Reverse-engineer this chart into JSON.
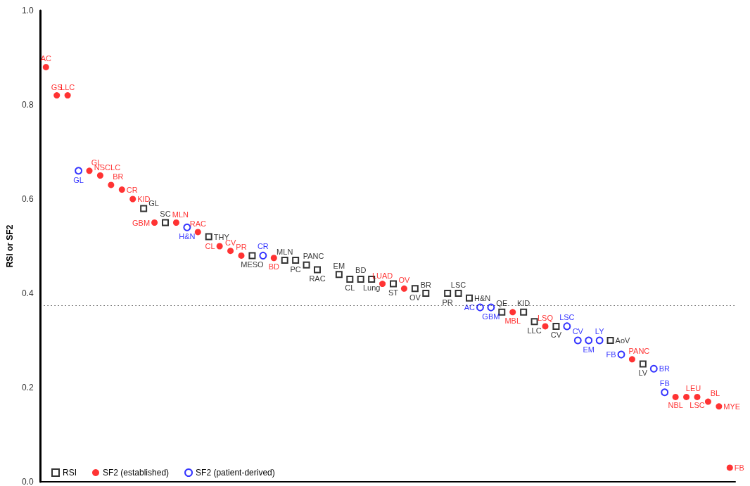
{
  "chart_data": {
    "type": "scatter",
    "ylabel": "RSI or SF2",
    "categories": [
      null,
      null,
      null,
      null,
      null,
      null,
      null,
      null,
      null,
      null,
      null,
      null,
      null,
      null,
      null,
      null,
      null,
      null,
      null,
      null,
      null,
      null,
      null,
      null,
      null,
      null,
      null,
      null,
      null,
      null,
      null,
      null,
      null,
      null,
      null,
      null,
      null,
      null,
      null,
      null,
      null,
      null,
      null,
      null,
      null,
      null,
      null,
      null,
      null,
      null,
      null,
      null,
      null,
      null,
      null,
      null,
      null,
      null,
      null,
      null,
      null,
      null,
      null,
      null
    ],
    "series": [
      {
        "name": "RSI",
        "color": "#000000",
        "marker": "square",
        "values": [
          null,
          null,
          null,
          null,
          null,
          null,
          null,
          null,
          null,
          0.58,
          null,
          0.55,
          null,
          null,
          null,
          0.52,
          null,
          null,
          null,
          0.48,
          null,
          null,
          0.47,
          0.47,
          0.46,
          0.45,
          null,
          0.44,
          0.43,
          0.43,
          0.43,
          null,
          0.42,
          null,
          0.41,
          0.4,
          null,
          0.4,
          0.4,
          0.39,
          null,
          null,
          0.36,
          null,
          0.36,
          0.34,
          null,
          0.33,
          null,
          null,
          null,
          null,
          0.3,
          null,
          null,
          0.25,
          null,
          null,
          null,
          null,
          null,
          null,
          null,
          null
        ],
        "value_labels": [
          null,
          null,
          null,
          null,
          null,
          null,
          null,
          null,
          null,
          "GL",
          null,
          "SC",
          null,
          null,
          null,
          "THY",
          null,
          null,
          null,
          "MESO",
          null,
          null,
          "MLN",
          "PC",
          "PANC",
          "RAC",
          null,
          "EM",
          "CL",
          "BD",
          "Lung",
          null,
          "ST",
          null,
          "OV",
          "BR",
          null,
          "PR",
          "LSC",
          "H&N",
          null,
          null,
          "QE",
          null,
          "KID",
          "LLC",
          null,
          "CV",
          null,
          null,
          null,
          null,
          "AoV",
          null,
          null,
          "LV",
          null,
          null,
          null,
          null,
          null,
          null,
          null,
          null
        ]
      },
      {
        "name": "SF2 (established)",
        "color": "#ff0000",
        "marker": "circle",
        "values": [
          0.88,
          0.82,
          0.82,
          null,
          0.66,
          0.65,
          0.63,
          0.62,
          0.6,
          null,
          0.55,
          null,
          0.55,
          null,
          0.53,
          null,
          0.5,
          0.49,
          0.48,
          null,
          null,
          0.475,
          null,
          null,
          null,
          null,
          null,
          null,
          null,
          null,
          null,
          0.42,
          null,
          0.41,
          null,
          null,
          null,
          null,
          null,
          null,
          null,
          null,
          null,
          0.36,
          null,
          null,
          0.33,
          null,
          null,
          null,
          null,
          null,
          null,
          null,
          0.26,
          null,
          null,
          null,
          0.18,
          0.18,
          0.18,
          0.17,
          0.16,
          0.03
        ],
        "value_labels": [
          "AC",
          "GS",
          "LLC",
          null,
          "GL",
          "NSCLC",
          "BR",
          "CR",
          "KID",
          null,
          "GBM",
          null,
          "MLN",
          null,
          "RAC",
          null,
          "CL",
          "CV",
          "PR",
          null,
          null,
          "BD",
          null,
          null,
          null,
          null,
          null,
          null,
          null,
          null,
          null,
          "LUAD",
          null,
          "OV",
          null,
          null,
          null,
          null,
          null,
          null,
          null,
          null,
          null,
          "MBL",
          null,
          null,
          "LSQ",
          null,
          null,
          null,
          null,
          null,
          null,
          null,
          "PANC",
          null,
          null,
          null,
          "NBL",
          "LEU",
          "LSC",
          "BL",
          "MYE",
          "FB"
        ]
      },
      {
        "name": "SF2 (patient-derived)",
        "color": "#0000ff",
        "marker": "circle",
        "values": [
          null,
          null,
          null,
          0.66,
          null,
          null,
          null,
          null,
          null,
          null,
          null,
          null,
          null,
          0.54,
          null,
          null,
          null,
          null,
          null,
          null,
          0.48,
          null,
          null,
          null,
          null,
          null,
          null,
          null,
          null,
          null,
          null,
          null,
          null,
          null,
          null,
          null,
          null,
          null,
          null,
          null,
          0.37,
          0.37,
          null,
          null,
          null,
          null,
          null,
          null,
          0.33,
          0.3,
          0.3,
          0.3,
          null,
          0.27,
          null,
          null,
          0.24,
          0.19,
          null,
          null,
          null,
          null,
          null,
          null
        ],
        "value_labels": [
          null,
          null,
          null,
          "GL",
          null,
          null,
          null,
          null,
          null,
          null,
          null,
          null,
          null,
          "H&N",
          null,
          null,
          null,
          null,
          null,
          null,
          "CR",
          null,
          null,
          null,
          null,
          null,
          null,
          null,
          null,
          null,
          null,
          null,
          null,
          null,
          null,
          null,
          null,
          null,
          null,
          null,
          "AC",
          "GBM",
          null,
          null,
          null,
          null,
          null,
          null,
          "LSC",
          "CV",
          "EM",
          "LY",
          null,
          "FB",
          null,
          null,
          "BR",
          "FB",
          null,
          null,
          null,
          null,
          null,
          null
        ]
      }
    ],
    "ylim": [
      0,
      1
    ],
    "yticks": [
      {
        "value": 0,
        "label": "0.0"
      },
      0.2,
      0.4,
      0.6,
      0.8,
      {
        "value": 1,
        "label": "1.0"
      }
    ],
    "ref_lines": [
      {
        "axis": "y",
        "value": 0.375,
        "color": "#000000",
        "line_style": "dotted"
      }
    ],
    "tick_labels": "y",
    "grid": false,
    "legend": "bottom left"
  }
}
